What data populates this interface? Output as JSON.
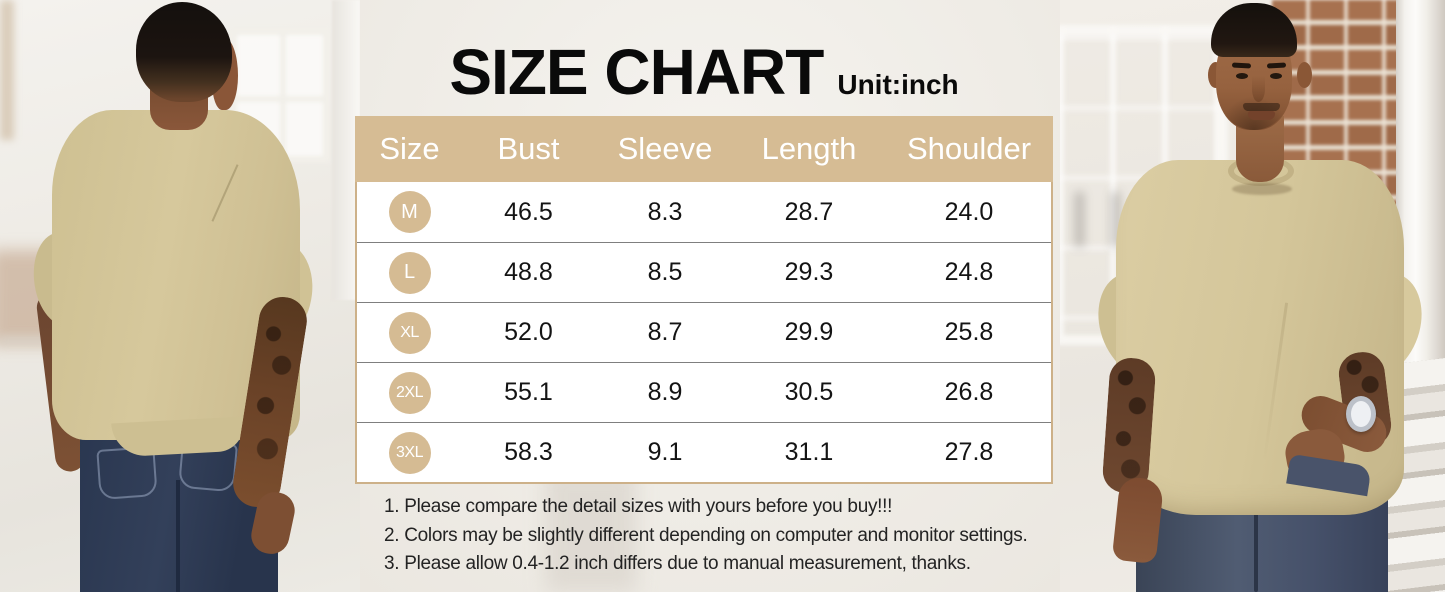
{
  "title": {
    "main": "SIZE CHART",
    "unit": "Unit:inch"
  },
  "table": {
    "headers": [
      "Size",
      "Bust",
      "Sleeve",
      "Length",
      "Shoulder"
    ],
    "rows": [
      {
        "size": "M",
        "values": [
          "46.5",
          "8.3",
          "28.7",
          "24.0"
        ]
      },
      {
        "size": "L",
        "values": [
          "48.8",
          "8.5",
          "29.3",
          "24.8"
        ]
      },
      {
        "size": "XL",
        "values": [
          "52.0",
          "8.7",
          "29.9",
          "25.8"
        ]
      },
      {
        "size": "2XL",
        "values": [
          "55.1",
          "8.9",
          "30.5",
          "26.8"
        ]
      },
      {
        "size": "3XL",
        "values": [
          "58.3",
          "9.1",
          "31.1",
          "27.8"
        ]
      }
    ]
  },
  "notes": [
    "1. Please compare the detail sizes with yours before you buy!!!",
    "2. Colors may be slightly different depending on computer and monitor settings.",
    "3. Please allow 0.4-1.2 inch differs due to manual measurement, thanks."
  ],
  "chart_data": {
    "type": "table",
    "title": "SIZE CHART",
    "unit": "inch",
    "columns": [
      "Size",
      "Bust",
      "Sleeve",
      "Length",
      "Shoulder"
    ],
    "rows": [
      [
        "M",
        46.5,
        8.3,
        28.7,
        24.0
      ],
      [
        "L",
        48.8,
        8.5,
        29.3,
        24.8
      ],
      [
        "XL",
        52.0,
        8.7,
        29.9,
        25.8
      ],
      [
        "2XL",
        55.1,
        8.9,
        30.5,
        26.8
      ],
      [
        "3XL",
        58.3,
        9.1,
        31.1,
        27.8
      ]
    ]
  },
  "colors": {
    "accent_tan": "#d6bc94",
    "table_border_tan": "#cdb189",
    "header_text": "#ffffff",
    "cell_text": "#141414",
    "row_separator": "#7f7f7f",
    "note_text": "#232323",
    "tshirt_khaki": "#d2c49a",
    "jeans_back_view": "#2d3a52",
    "jeans_front_view": "#46516a"
  },
  "images": {
    "left_photo": "model-back-view-khaki-tshirt",
    "right_photo": "model-front-view-khaki-tshirt"
  }
}
